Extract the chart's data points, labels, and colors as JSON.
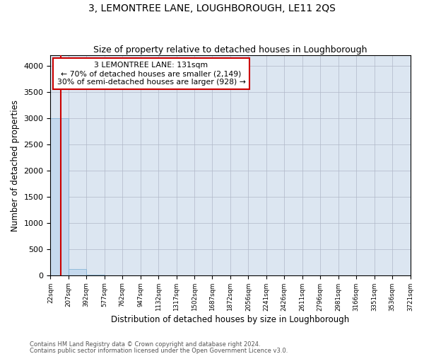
{
  "title": "3, LEMONTREE LANE, LOUGHBOROUGH, LE11 2QS",
  "subtitle": "Size of property relative to detached houses in Loughborough",
  "xlabel": "Distribution of detached houses by size in Loughborough",
  "ylabel": "Number of detached properties",
  "footnote1": "Contains HM Land Registry data © Crown copyright and database right 2024.",
  "footnote2": "Contains public sector information licensed under the Open Government Licence v3.0.",
  "bin_labels": [
    "22sqm",
    "207sqm",
    "392sqm",
    "577sqm",
    "762sqm",
    "947sqm",
    "1132sqm",
    "1317sqm",
    "1502sqm",
    "1687sqm",
    "1872sqm",
    "2056sqm",
    "2241sqm",
    "2426sqm",
    "2611sqm",
    "2796sqm",
    "2981sqm",
    "3166sqm",
    "3351sqm",
    "3536sqm",
    "3721sqm"
  ],
  "bar_heights": [
    3000,
    115,
    5,
    2,
    1,
    1,
    0,
    0,
    0,
    0,
    0,
    0,
    0,
    0,
    0,
    0,
    0,
    0,
    0,
    0
  ],
  "bar_color": "#c5d9ed",
  "bar_edgecolor": "#7bafd4",
  "vline_color": "#cc0000",
  "vline_position": 0.59,
  "annotation_title": "3 LEMONTREE LANE: 131sqm",
  "annotation_line1": "← 70% of detached houses are smaller (2,149)",
  "annotation_line2": "30% of semi-detached houses are larger (928) →",
  "annotation_box_facecolor": "#ffffff",
  "annotation_box_edgecolor": "#cc0000",
  "ylim": [
    0,
    4200
  ],
  "yticks": [
    0,
    500,
    1000,
    1500,
    2000,
    2500,
    3000,
    3500,
    4000
  ],
  "grid_color": "#b0b8c8",
  "plot_bg_color": "#dce6f1",
  "title_fontsize": 10,
  "subtitle_fontsize": 9
}
